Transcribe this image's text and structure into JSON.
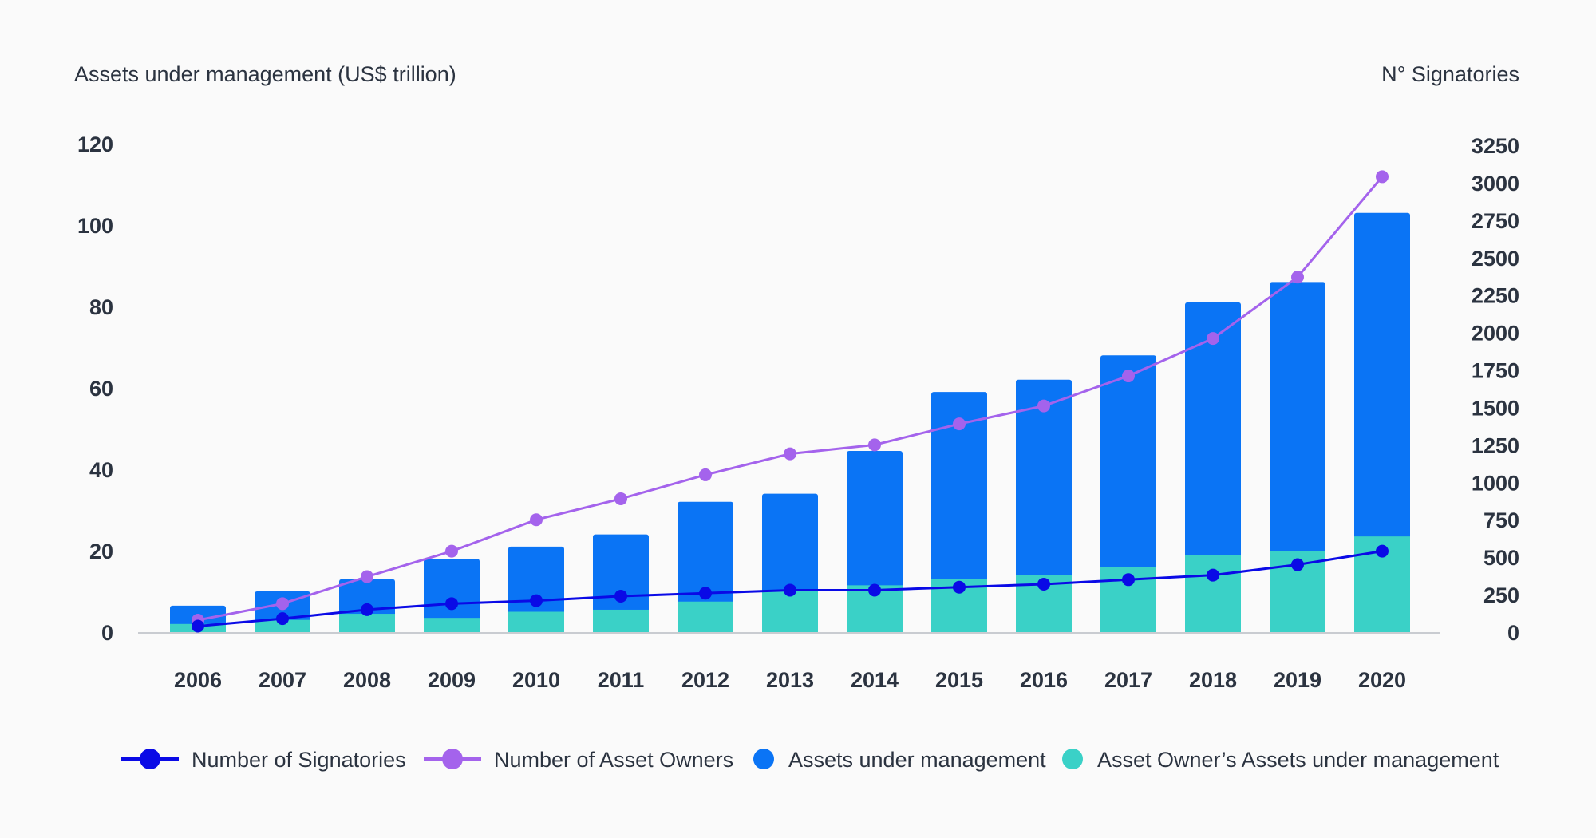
{
  "chart_data": {
    "type": "bar+line",
    "y_left_label": "Assets under management (US$ trillion)",
    "y_right_label": "N° Signatories",
    "categories": [
      "2006",
      "2007",
      "2008",
      "2009",
      "2010",
      "2011",
      "2012",
      "2013",
      "2014",
      "2015",
      "2016",
      "2017",
      "2018",
      "2019",
      "2020"
    ],
    "y_left_ticks": [
      "0",
      "20",
      "40",
      "60",
      "80",
      "100",
      "120"
    ],
    "y_right_ticks": [
      "0",
      "250",
      "500",
      "750",
      "1000",
      "1250",
      "1500",
      "1750",
      "2000",
      "2250",
      "2500",
      "2750",
      "3000",
      "3250"
    ],
    "ylim_left": [
      0,
      120
    ],
    "ylim_right": [
      0,
      3250
    ],
    "series": [
      {
        "name": "Assets under management",
        "kind": "bar",
        "axis": "left",
        "color": "#0a74f5",
        "values": [
          6.5,
          10,
          13,
          18,
          21,
          24,
          32,
          34,
          44.5,
          59,
          62,
          68,
          81,
          86,
          103
        ]
      },
      {
        "name": "Asset Owner’s Assets under management",
        "kind": "bar",
        "axis": "left",
        "color": "#3ad1c7",
        "values": [
          2,
          3,
          4.5,
          3.5,
          5,
          5.5,
          7.5,
          10,
          11.5,
          13,
          14,
          16,
          19,
          20,
          23.5
        ]
      },
      {
        "name": "Number of Signatories",
        "kind": "line",
        "axis": "right",
        "color": "#0a0ae6",
        "values": [
          40,
          90,
          150,
          190,
          210,
          240,
          260,
          280,
          280,
          300,
          320,
          350,
          380,
          450,
          540
        ]
      },
      {
        "name": "Number of Asset Owners",
        "kind": "line",
        "axis": "right",
        "color": "#a463ec",
        "values": [
          80,
          190,
          370,
          540,
          750,
          890,
          1050,
          1190,
          1250,
          1390,
          1510,
          1710,
          1960,
          2370,
          3040
        ]
      }
    ],
    "legend": [
      {
        "label": "Number of Signatories",
        "kind": "line",
        "color": "#0a0ae6"
      },
      {
        "label": "Number of Asset Owners",
        "kind": "line",
        "color": "#a463ec"
      },
      {
        "label": "Assets under management",
        "kind": "dot",
        "color": "#0a74f5"
      },
      {
        "label": "Asset Owner’s Assets under management",
        "kind": "dot",
        "color": "#3ad1c7"
      }
    ]
  }
}
